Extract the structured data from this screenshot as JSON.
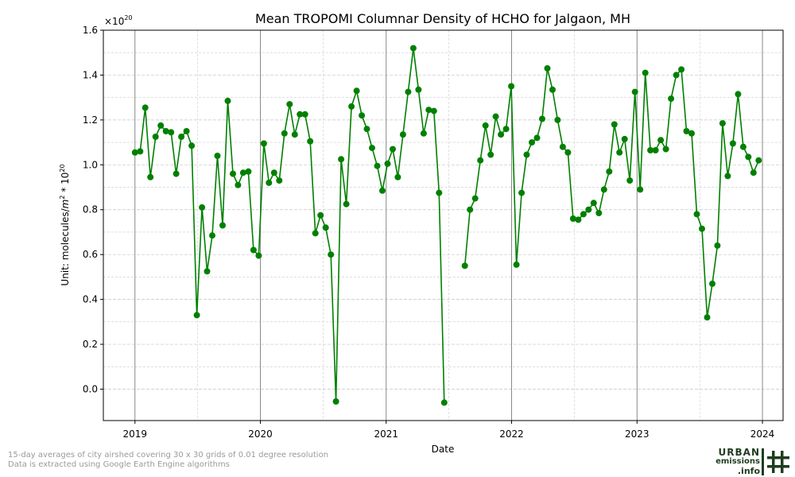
{
  "chart_data": {
    "type": "line",
    "title": "Mean TROPOMI Columnar Density of HCHO for Jalgaon, MH",
    "xlabel": "Date",
    "ylabel_prefix": "Unit: molecules/",
    "ylabel_m": "m",
    "ylabel_m_exp": "2",
    "ylabel_mid": " * 10",
    "ylabel_exp": "20",
    "y_scale_base": "×10",
    "y_scale_exp": "20",
    "ylim": [
      -0.14,
      1.6
    ],
    "yticks": [
      0.0,
      0.2,
      0.4,
      0.6,
      0.8,
      1.0,
      1.2,
      1.4,
      1.6
    ],
    "ytick_labels": [
      "0.0",
      "0.2",
      "0.4",
      "0.6",
      "0.8",
      "1.0",
      "1.2",
      "1.4",
      "1.6"
    ],
    "xlim": [
      "2018-10-01",
      "2024-03-01"
    ],
    "xticks": [
      "2019-01-01",
      "2020-01-01",
      "2021-01-01",
      "2022-01-01",
      "2023-01-01",
      "2024-01-01"
    ],
    "xtick_labels": [
      "2019",
      "2020",
      "2021",
      "2022",
      "2023",
      "2024"
    ],
    "grid": true,
    "color": "#008000",
    "series": [
      {
        "points": [
          [
            "2019-01-01",
            1.055
          ],
          [
            "2019-01-16",
            1.06
          ],
          [
            "2019-01-31",
            1.255
          ],
          [
            "2019-02-15",
            0.945
          ],
          [
            "2019-03-02",
            1.125
          ],
          [
            "2019-03-17",
            1.175
          ],
          [
            "2019-04-01",
            1.15
          ],
          [
            "2019-04-16",
            1.145
          ],
          [
            "2019-05-01",
            0.96
          ],
          [
            "2019-05-16",
            1.125
          ],
          [
            "2019-05-31",
            1.15
          ],
          [
            "2019-06-15",
            1.085
          ],
          [
            "2019-06-30",
            0.33
          ],
          [
            "2019-07-15",
            0.81
          ],
          [
            "2019-07-30",
            0.525
          ],
          [
            "2019-08-14",
            0.685
          ],
          [
            "2019-08-29",
            1.04
          ],
          [
            "2019-09-13",
            0.73
          ],
          [
            "2019-09-28",
            1.285
          ],
          [
            "2019-10-13",
            0.96
          ],
          [
            "2019-10-28",
            0.91
          ],
          [
            "2019-11-12",
            0.965
          ],
          [
            "2019-11-27",
            0.97
          ],
          [
            "2019-12-12",
            0.62
          ],
          [
            "2019-12-27",
            0.595
          ],
          [
            "2020-01-11",
            1.095
          ],
          [
            "2020-01-26",
            0.92
          ],
          [
            "2020-02-10",
            0.965
          ],
          [
            "2020-02-25",
            0.93
          ],
          [
            "2020-03-11",
            1.14
          ],
          [
            "2020-03-26",
            1.27
          ],
          [
            "2020-04-10",
            1.135
          ],
          [
            "2020-04-25",
            1.225
          ],
          [
            "2020-05-10",
            1.225
          ],
          [
            "2020-05-25",
            1.105
          ],
          [
            "2020-06-09",
            0.695
          ],
          [
            "2020-06-24",
            0.775
          ],
          [
            "2020-07-09",
            0.72
          ],
          [
            "2020-07-24",
            0.6
          ],
          [
            "2020-08-08",
            -0.055
          ],
          [
            "2020-08-23",
            1.025
          ],
          [
            "2020-09-07",
            0.825
          ],
          [
            "2020-09-22",
            1.26
          ],
          [
            "2020-10-07",
            1.33
          ],
          [
            "2020-10-22",
            1.22
          ],
          [
            "2020-11-06",
            1.16
          ],
          [
            "2020-11-21",
            1.075
          ],
          [
            "2020-12-06",
            0.995
          ],
          [
            "2020-12-21",
            0.885
          ],
          [
            "2021-01-05",
            1.005
          ],
          [
            "2021-01-20",
            1.07
          ],
          [
            "2021-02-04",
            0.945
          ],
          [
            "2021-02-19",
            1.135
          ],
          [
            "2021-03-06",
            1.325
          ],
          [
            "2021-03-21",
            1.52
          ],
          [
            "2021-04-05",
            1.335
          ],
          [
            "2021-04-20",
            1.14
          ],
          [
            "2021-05-05",
            1.245
          ],
          [
            "2021-05-20",
            1.24
          ],
          [
            "2021-06-04",
            0.875
          ],
          [
            "2021-06-19",
            -0.06
          ]
        ]
      },
      {
        "points": [
          [
            "2021-08-18",
            0.55
          ],
          [
            "2021-09-02",
            0.8
          ],
          [
            "2021-09-17",
            0.85
          ],
          [
            "2021-10-02",
            1.02
          ],
          [
            "2021-10-17",
            1.175
          ],
          [
            "2021-11-01",
            1.045
          ],
          [
            "2021-11-16",
            1.215
          ],
          [
            "2021-12-01",
            1.135
          ],
          [
            "2021-12-16",
            1.16
          ],
          [
            "2021-12-31",
            1.35
          ],
          [
            "2022-01-15",
            0.555
          ],
          [
            "2022-01-30",
            0.875
          ],
          [
            "2022-02-14",
            1.045
          ],
          [
            "2022-03-01",
            1.1
          ],
          [
            "2022-03-16",
            1.12
          ],
          [
            "2022-03-31",
            1.205
          ],
          [
            "2022-04-15",
            1.43
          ],
          [
            "2022-04-30",
            1.335
          ],
          [
            "2022-05-15",
            1.2
          ],
          [
            "2022-05-30",
            1.08
          ],
          [
            "2022-06-14",
            1.055
          ],
          [
            "2022-06-29",
            0.76
          ],
          [
            "2022-07-14",
            0.755
          ],
          [
            "2022-07-29",
            0.78
          ],
          [
            "2022-08-13",
            0.8
          ],
          [
            "2022-08-28",
            0.83
          ],
          [
            "2022-09-12",
            0.785
          ],
          [
            "2022-09-27",
            0.89
          ],
          [
            "2022-10-12",
            0.97
          ],
          [
            "2022-10-27",
            1.18
          ],
          [
            "2022-11-11",
            1.055
          ],
          [
            "2022-11-26",
            1.115
          ],
          [
            "2022-12-11",
            0.93
          ],
          [
            "2022-12-26",
            1.325
          ],
          [
            "2023-01-10",
            0.89
          ],
          [
            "2023-01-25",
            1.41
          ],
          [
            "2023-02-09",
            1.065
          ],
          [
            "2023-02-24",
            1.065
          ],
          [
            "2023-03-11",
            1.11
          ],
          [
            "2023-03-26",
            1.07
          ],
          [
            "2023-04-10",
            1.295
          ],
          [
            "2023-04-25",
            1.4
          ],
          [
            "2023-05-10",
            1.425
          ],
          [
            "2023-05-25",
            1.15
          ],
          [
            "2023-06-09",
            1.14
          ],
          [
            "2023-06-24",
            0.78
          ],
          [
            "2023-07-09",
            0.715
          ],
          [
            "2023-07-24",
            0.32
          ],
          [
            "2023-08-08",
            0.47
          ],
          [
            "2023-08-23",
            0.64
          ],
          [
            "2023-09-07",
            1.185
          ],
          [
            "2023-09-22",
            0.95
          ],
          [
            "2023-10-07",
            1.095
          ],
          [
            "2023-10-22",
            1.315
          ],
          [
            "2023-11-06",
            1.08
          ],
          [
            "2023-11-21",
            1.035
          ],
          [
            "2023-12-06",
            0.965
          ],
          [
            "2023-12-21",
            1.02
          ]
        ]
      }
    ]
  },
  "footnotes": {
    "line1": "15-day averages of city airshed covering 30 x 30 grids of 0.01 degree resolution",
    "line2": "Data is extracted using Google Earth Engine algorithms"
  },
  "logo": {
    "word1": "URBAN",
    "word2": "emissions",
    "word3": ".info",
    "color": "#1f3d1f"
  }
}
